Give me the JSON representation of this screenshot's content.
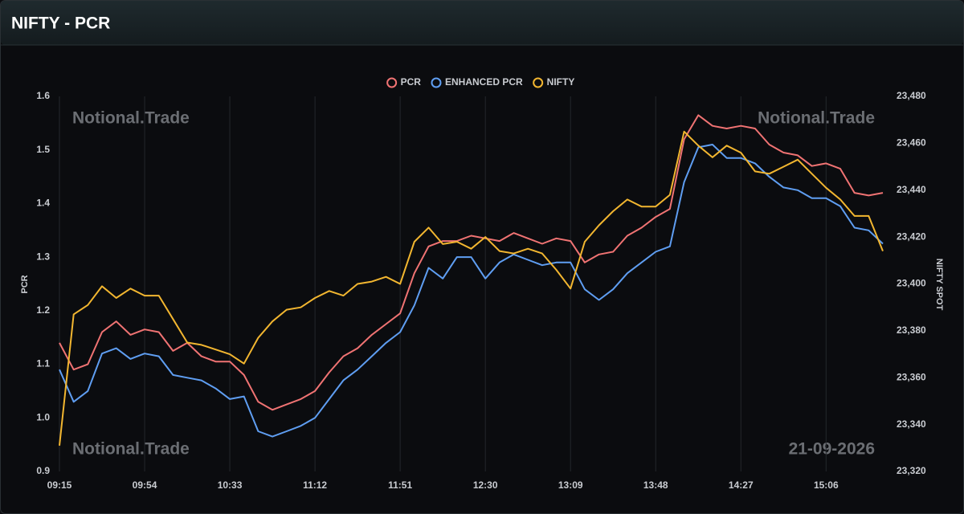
{
  "header": {
    "title": "NIFTY - PCR"
  },
  "chart_data": {
    "type": "line",
    "legend": [
      "PCR",
      "ENHANCED PCR",
      "NIFTY"
    ],
    "legend_position": "top",
    "ylabel": "PCR",
    "y2label": "NIFTY SPOT",
    "annotations": [
      "Notional.Trade",
      "Notional.Trade",
      "Notional.Trade",
      "21-09-2026"
    ],
    "grid": true,
    "categories": [
      "09:15",
      null,
      null,
      null,
      null,
      null,
      "09:54",
      null,
      null,
      null,
      null,
      null,
      "10:33",
      null,
      null,
      null,
      null,
      null,
      "11:12",
      null,
      null,
      null,
      null,
      null,
      "11:51",
      null,
      null,
      null,
      null,
      null,
      "12:30",
      null,
      null,
      null,
      null,
      null,
      "13:09",
      null,
      null,
      null,
      null,
      null,
      "13:48",
      null,
      null,
      null,
      null,
      null,
      "14:27",
      null,
      null,
      null,
      null,
      null,
      "15:06",
      null,
      null,
      null,
      null
    ],
    "ylim": [
      0.9,
      1.6
    ],
    "yticks": [
      0.9,
      {
        "value": 1,
        "label": "1.0"
      },
      1.1,
      1.2,
      1.3,
      1.4,
      1.5,
      1.6
    ],
    "y2lim": [
      23320,
      23480
    ],
    "y2ticks": [
      {
        "value": 23320,
        "label": "23,320"
      },
      {
        "value": 23340,
        "label": "23,340"
      },
      {
        "value": 23360,
        "label": "23,360"
      },
      {
        "value": 23380,
        "label": "23,380"
      },
      {
        "value": 23400,
        "label": "23,400"
      },
      {
        "value": 23420,
        "label": "23,420"
      },
      {
        "value": 23440,
        "label": "23,440"
      },
      {
        "value": 23460,
        "label": "23,460"
      },
      {
        "value": 23480,
        "label": "23,480"
      }
    ],
    "series": [
      {
        "name": "PCR",
        "color": "#f07373",
        "values": [
          1.14,
          1.09,
          1.1,
          1.16,
          1.18,
          1.155,
          1.165,
          1.16,
          1.125,
          1.14,
          1.115,
          1.105,
          1.105,
          1.08,
          1.03,
          1.015,
          1.025,
          1.035,
          1.05,
          1.085,
          1.115,
          1.13,
          1.155,
          1.175,
          1.195,
          1.27,
          1.32,
          1.33,
          1.33,
          1.34,
          1.335,
          1.33,
          1.345,
          1.335,
          1.325,
          1.335,
          1.33,
          1.29,
          1.305,
          1.31,
          1.34,
          1.355,
          1.375,
          1.39,
          1.52,
          1.565,
          1.545,
          1.54,
          1.545,
          1.54,
          1.51,
          1.495,
          1.49,
          1.47,
          1.475,
          1.465,
          1.42,
          1.415,
          1.42
        ]
      },
      {
        "name": "ENHANCED PCR",
        "color": "#5f9ef2",
        "values": [
          1.09,
          1.03,
          1.05,
          1.12,
          1.13,
          1.11,
          1.12,
          1.115,
          1.08,
          1.075,
          1.07,
          1.055,
          1.035,
          1.04,
          0.975,
          0.965,
          0.975,
          0.985,
          1.0,
          1.035,
          1.07,
          1.09,
          1.115,
          1.14,
          1.16,
          1.21,
          1.28,
          1.26,
          1.3,
          1.3,
          1.26,
          1.29,
          1.305,
          1.295,
          1.285,
          1.29,
          1.29,
          1.24,
          1.22,
          1.24,
          1.27,
          1.29,
          1.31,
          1.32,
          1.44,
          1.505,
          1.51,
          1.485,
          1.485,
          1.475,
          1.45,
          1.43,
          1.425,
          1.41,
          1.41,
          1.395,
          1.355,
          1.35,
          1.325
        ]
      },
      {
        "name": "NIFTY",
        "color": "#f2b630",
        "axis": "y2",
        "values": [
          23331,
          23387,
          23391,
          23399,
          23394,
          23398,
          23395,
          23395,
          23385,
          23375,
          23374,
          23372,
          23370,
          23366,
          23377,
          23384,
          23389,
          23390,
          23394,
          23397,
          23395,
          23400,
          23401,
          23403,
          23400,
          23418,
          23424,
          23417,
          23418,
          23415,
          23420,
          23414,
          23413,
          23415,
          23413,
          23406,
          23398,
          23418,
          23425,
          23431,
          23436,
          23433,
          23433,
          23438,
          23465,
          23459,
          23454,
          23459,
          23456,
          23448,
          23447,
          23450,
          23453,
          23447,
          23441,
          23436,
          23429,
          23429,
          23414
        ]
      }
    ]
  }
}
